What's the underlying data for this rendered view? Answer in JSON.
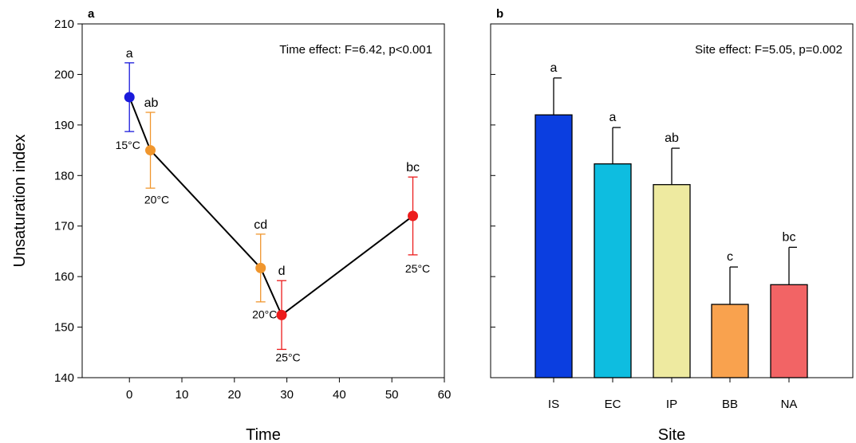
{
  "chart_data": [
    {
      "panel": "a",
      "type": "line",
      "annotation": "Time effect: F=6.42, p<0.001",
      "xlabel": "Time",
      "ylabel": "Unsaturation index",
      "xlim": [
        -9,
        60
      ],
      "ylim": [
        140,
        210
      ],
      "xticks": [
        0,
        10,
        20,
        30,
        40,
        50,
        60
      ],
      "yticks": [
        140,
        150,
        160,
        170,
        180,
        190,
        200,
        210
      ],
      "points": [
        {
          "x": 0,
          "y": 195.5,
          "err": 6.8,
          "sig": "a",
          "temp": "15°C",
          "color": "#1a1adb"
        },
        {
          "x": 4,
          "y": 185.0,
          "err": 7.5,
          "sig": "ab",
          "temp": "20°C",
          "color": "#f0962d"
        },
        {
          "x": 25,
          "y": 161.7,
          "err": 6.7,
          "sig": "cd",
          "temp": "",
          "color": "#f0962d"
        },
        {
          "x": 29,
          "y": 152.4,
          "err": 6.8,
          "sig": "d",
          "temp": "25°C",
          "color": "#ec1c1c"
        },
        {
          "x": 54,
          "y": 172.0,
          "err": 7.7,
          "sig": "bc",
          "temp": "25°C",
          "color": "#ec1c1c"
        }
      ],
      "extra_labels": [
        {
          "text": "20°C",
          "color": "#f0962d"
        }
      ],
      "line_color": "#000000"
    },
    {
      "panel": "b",
      "type": "bar",
      "annotation": "Site effect: F=5.05, p=0.002",
      "xlabel": "Site",
      "ylabel": "",
      "ylim": [
        140,
        210
      ],
      "yticks": [
        140,
        150,
        160,
        170,
        180,
        190,
        200,
        210
      ],
      "categories": [
        "IS",
        "EC",
        "IP",
        "BB",
        "NA"
      ],
      "values": [
        192.0,
        182.3,
        178.2,
        154.5,
        158.4
      ],
      "errors": [
        7.3,
        7.2,
        7.2,
        7.4,
        7.4
      ],
      "sig": [
        "a",
        "a",
        "ab",
        "c",
        "bc"
      ],
      "colors": [
        "#0b3ee0",
        "#0ebde0",
        "#eeeaa0",
        "#f9a24e",
        "#f26465"
      ]
    }
  ]
}
